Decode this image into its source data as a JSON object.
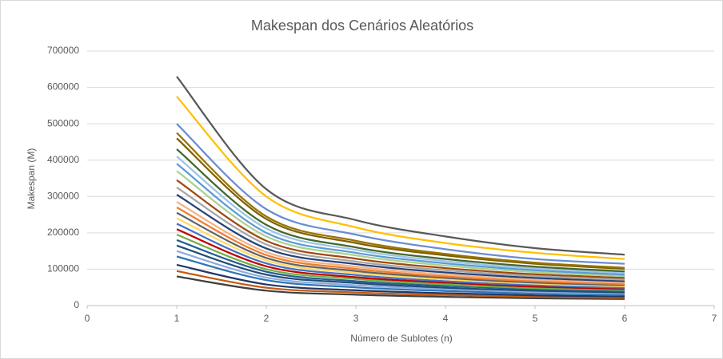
{
  "chart_data": {
    "type": "line",
    "title": "Makespan dos Cenários Aleatórios",
    "xlabel": "Número de Sublotes (n)",
    "ylabel": "Makespan (M)",
    "x": [
      1,
      2,
      3,
      4,
      5,
      6
    ],
    "xlim": [
      0,
      7
    ],
    "xticks": [
      0,
      1,
      2,
      3,
      4,
      5,
      6,
      7
    ],
    "ylim": [
      0,
      700000
    ],
    "yticks": [
      0,
      100000,
      200000,
      300000,
      400000,
      500000,
      600000,
      700000
    ],
    "grid": true,
    "smooth": true,
    "series": [
      {
        "color": "#595959",
        "values": [
          630000,
          320000,
          235000,
          190000,
          158000,
          140000
        ]
      },
      {
        "color": "#ffc000",
        "values": [
          575000,
          300000,
          215000,
          172000,
          145000,
          128000
        ]
      },
      {
        "color": "#698ed0",
        "values": [
          500000,
          265000,
          195000,
          155000,
          128000,
          115000
        ]
      },
      {
        "color": "#997300",
        "values": [
          475000,
          245000,
          178000,
          142000,
          118000,
          104000
        ]
      },
      {
        "color": "#7f6000",
        "values": [
          460000,
          238000,
          172000,
          138000,
          115000,
          101000
        ]
      },
      {
        "color": "#43682b",
        "values": [
          430000,
          222000,
          160000,
          128000,
          107000,
          94000
        ]
      },
      {
        "color": "#9dc3e6",
        "values": [
          410000,
          212000,
          153000,
          122000,
          102000,
          90000
        ]
      },
      {
        "color": "#5b9bd5",
        "values": [
          390000,
          200000,
          145000,
          116000,
          97000,
          85000
        ]
      },
      {
        "color": "#a9d18e",
        "values": [
          370000,
          190000,
          138000,
          110000,
          92000,
          81000
        ]
      },
      {
        "color": "#9e480e",
        "values": [
          345000,
          178000,
          129000,
          103000,
          86000,
          76000
        ]
      },
      {
        "color": "#a5a5a5",
        "values": [
          325000,
          168000,
          121000,
          97000,
          81000,
          71000
        ]
      },
      {
        "color": "#264478",
        "values": [
          305000,
          157000,
          114000,
          91000,
          76000,
          67000
        ]
      },
      {
        "color": "#f4b183",
        "values": [
          285000,
          147000,
          107000,
          85000,
          71000,
          63000
        ]
      },
      {
        "color": "#ed7d31",
        "values": [
          270000,
          139000,
          101000,
          80000,
          67000,
          59000
        ]
      },
      {
        "color": "#636363",
        "values": [
          255000,
          131000,
          95000,
          76000,
          63000,
          56000
        ]
      },
      {
        "color": "#ffd966",
        "values": [
          240000,
          124000,
          90000,
          72000,
          60000,
          53000
        ]
      },
      {
        "color": "#4472c4",
        "values": [
          225000,
          116000,
          84000,
          67000,
          56000,
          49000
        ]
      },
      {
        "color": "#c00000",
        "values": [
          210000,
          108000,
          78000,
          63000,
          52000,
          46000
        ]
      },
      {
        "color": "#70ad47",
        "values": [
          195000,
          100000,
          73000,
          58000,
          48000,
          43000
        ]
      },
      {
        "color": "#255e91",
        "values": [
          180000,
          93000,
          67000,
          54000,
          45000,
          40000
        ]
      },
      {
        "color": "#1f4e79",
        "values": [
          165000,
          85000,
          62000,
          49000,
          41000,
          36000
        ]
      },
      {
        "color": "#8faadc",
        "values": [
          150000,
          77000,
          56000,
          45000,
          37000,
          33000
        ]
      },
      {
        "color": "#2e75b6",
        "values": [
          135000,
          70000,
          50000,
          40000,
          33000,
          30000
        ]
      },
      {
        "color": "#203864",
        "values": [
          112000,
          58000,
          42000,
          34000,
          28000,
          25000
        ]
      },
      {
        "color": "#c55a11",
        "values": [
          95000,
          49000,
          36000,
          29000,
          24000,
          21000
        ]
      },
      {
        "color": "#404040",
        "values": [
          80000,
          41000,
          30000,
          24000,
          20000,
          18000
        ]
      }
    ]
  }
}
